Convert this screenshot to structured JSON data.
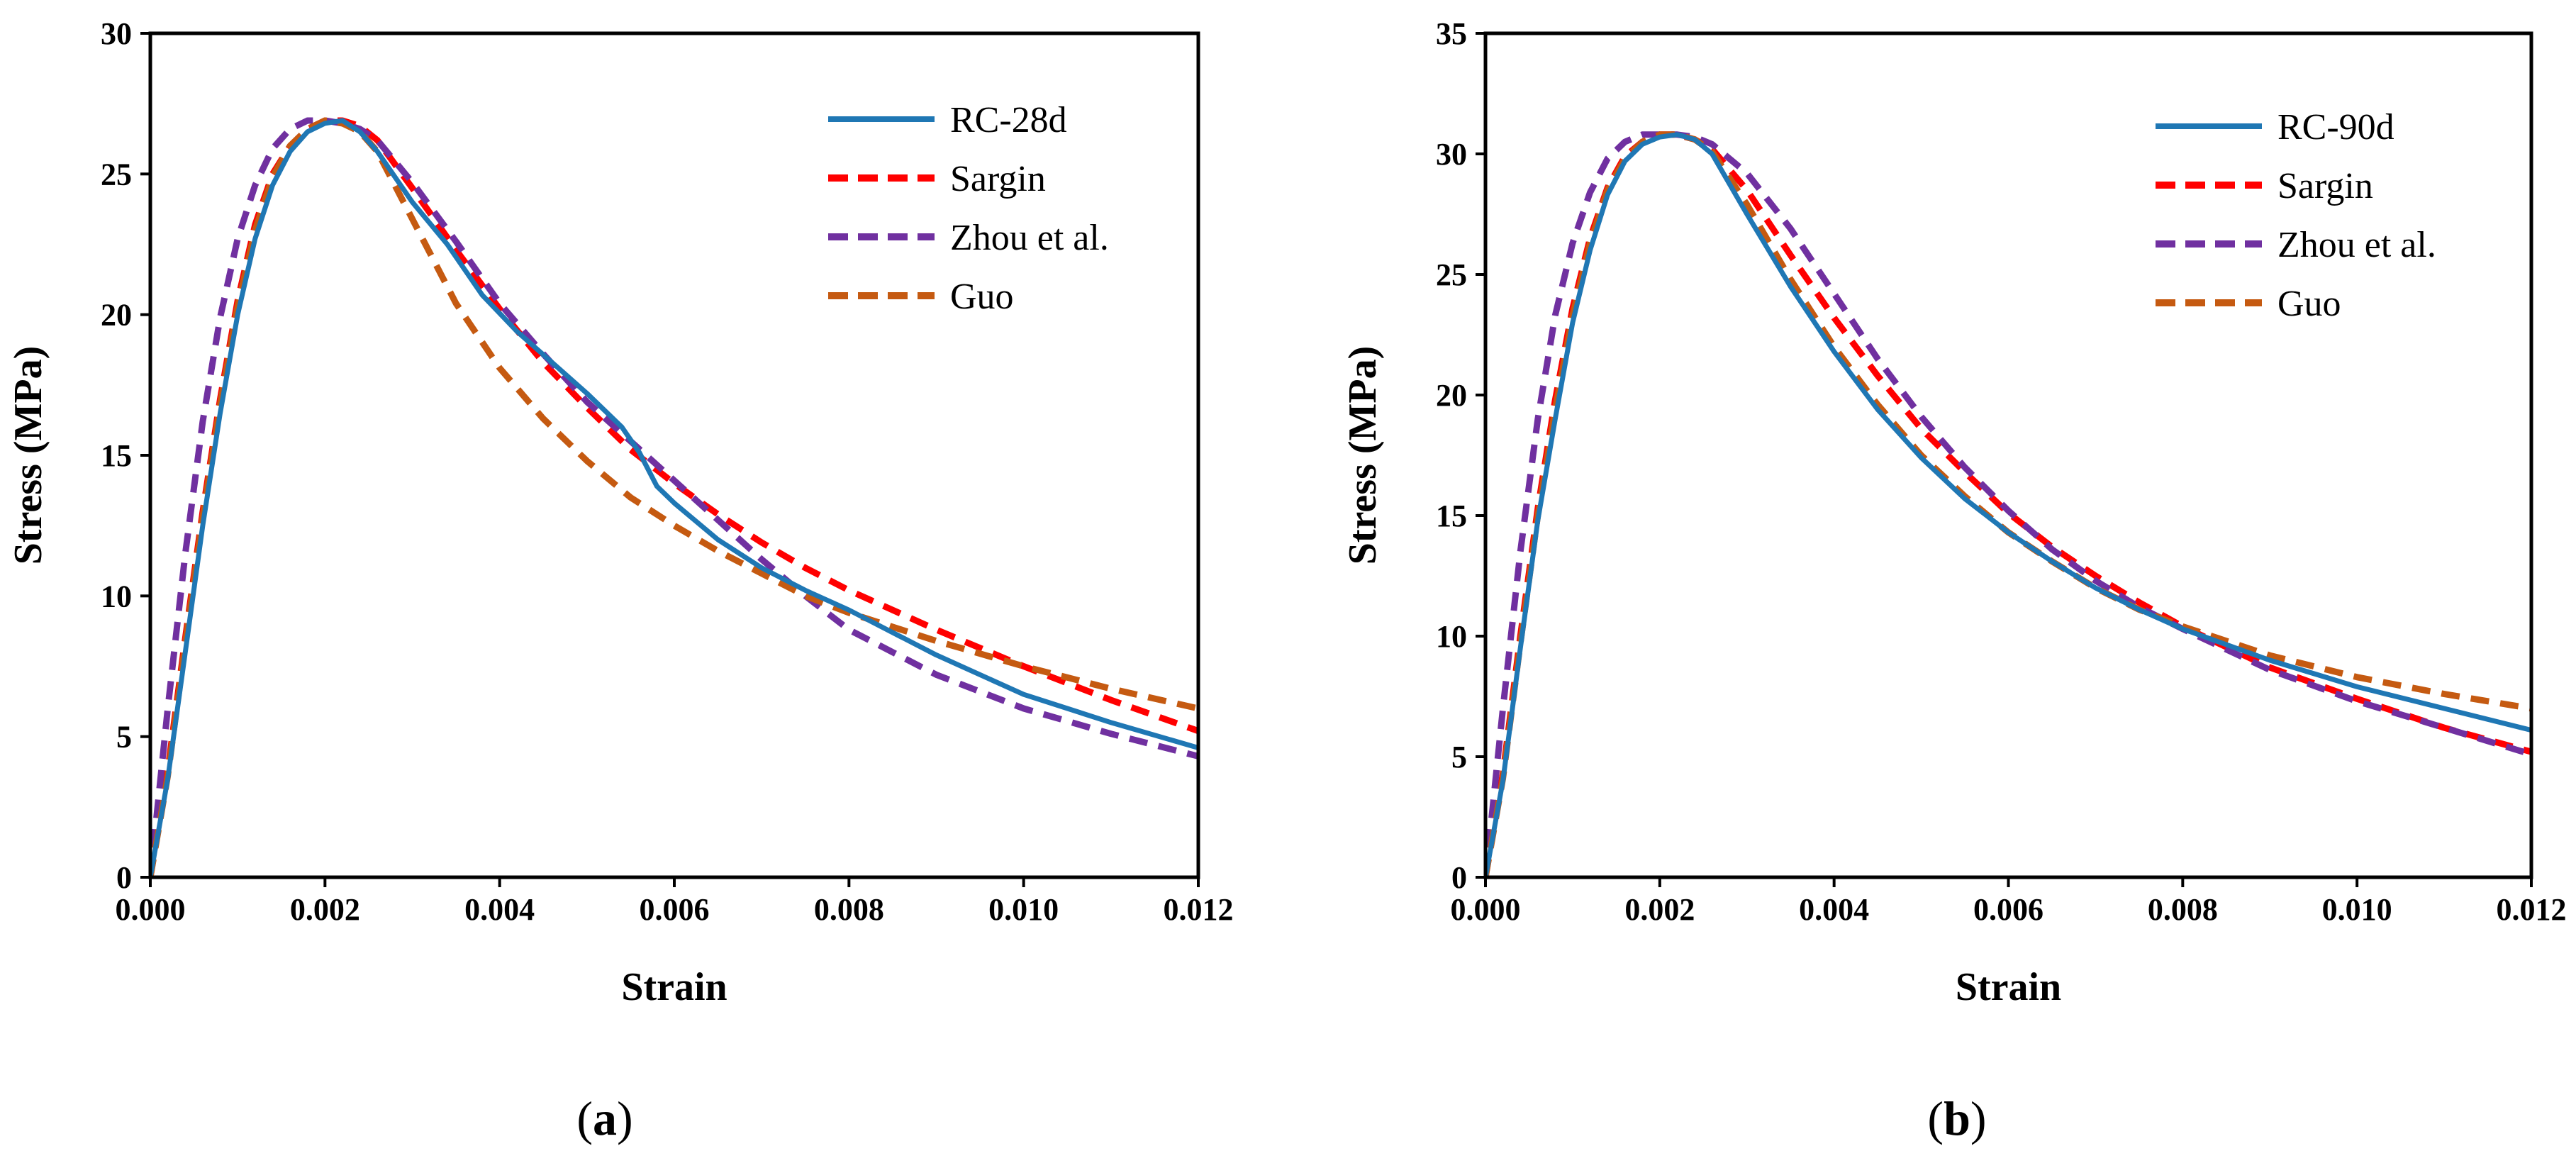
{
  "chart_data": [
    {
      "type": "line",
      "panel_label": "a",
      "title": "",
      "xlabel": "Strain",
      "ylabel": "Stress (MPa)",
      "xlim": [
        0,
        0.012
      ],
      "ylim": [
        0,
        30
      ],
      "xticks": [
        0,
        0.002,
        0.004,
        0.006,
        0.008,
        0.01,
        0.012
      ],
      "xtick_labels": [
        "0.000",
        "0.002",
        "0.004",
        "0.006",
        "0.008",
        "0.010",
        "0.012"
      ],
      "yticks": [
        0,
        5,
        10,
        15,
        20,
        25,
        30
      ],
      "ytick_labels": [
        "0",
        "5",
        "10",
        "15",
        "20",
        "25",
        "30"
      ],
      "grid": false,
      "legend_position": "top-right",
      "series": [
        {
          "name": "RC-28d",
          "style": "solid",
          "color": "#1f77b4",
          "x": [
            0,
            0.0002,
            0.0004,
            0.0006,
            0.0008,
            0.001,
            0.0012,
            0.0014,
            0.0016,
            0.0018,
            0.002,
            0.0022,
            0.0024,
            0.0026,
            0.003,
            0.0034,
            0.0038,
            0.0042,
            0.0046,
            0.005,
            0.0054,
            0.0056,
            0.0058,
            0.006,
            0.0065,
            0.007,
            0.0075,
            0.008,
            0.009,
            0.01,
            0.011,
            0.012
          ],
          "y": [
            0,
            3.5,
            8.0,
            12.5,
            16.5,
            20.0,
            22.7,
            24.6,
            25.8,
            26.5,
            26.8,
            26.9,
            26.5,
            25.8,
            24.0,
            22.5,
            20.7,
            19.4,
            18.3,
            17.2,
            16.0,
            15.1,
            13.9,
            13.3,
            12.0,
            11.0,
            10.2,
            9.5,
            7.9,
            6.5,
            5.5,
            4.6
          ]
        },
        {
          "name": "Sargin",
          "style": "dashed",
          "color": "#ff0000",
          "x": [
            0,
            0.0002,
            0.0004,
            0.0006,
            0.0008,
            0.001,
            0.0012,
            0.0014,
            0.0016,
            0.0018,
            0.002,
            0.0022,
            0.0024,
            0.0026,
            0.003,
            0.0035,
            0.004,
            0.0045,
            0.005,
            0.0055,
            0.006,
            0.0065,
            0.007,
            0.0075,
            0.008,
            0.009,
            0.01,
            0.011,
            0.012
          ],
          "y": [
            0,
            3.8,
            8.5,
            13.0,
            17.0,
            20.5,
            23.2,
            25.0,
            26.0,
            26.6,
            26.9,
            26.9,
            26.7,
            26.2,
            24.5,
            22.3,
            20.2,
            18.3,
            16.7,
            15.2,
            14.0,
            12.9,
            11.9,
            11.0,
            10.2,
            8.8,
            7.5,
            6.3,
            5.2
          ]
        },
        {
          "name": "Zhou et al.",
          "style": "dashed",
          "color": "#7030a0",
          "x": [
            0,
            0.0002,
            0.0004,
            0.0006,
            0.0008,
            0.001,
            0.0012,
            0.0014,
            0.0016,
            0.0018,
            0.002,
            0.0022,
            0.0024,
            0.0026,
            0.003,
            0.0035,
            0.004,
            0.0045,
            0.005,
            0.0055,
            0.006,
            0.0065,
            0.007,
            0.0075,
            0.008,
            0.009,
            0.01,
            0.011,
            0.012
          ],
          "y": [
            0,
            6.0,
            11.5,
            16.2,
            19.9,
            22.7,
            24.6,
            25.9,
            26.6,
            26.9,
            26.9,
            26.8,
            26.6,
            26.2,
            24.7,
            22.6,
            20.4,
            18.6,
            16.9,
            15.5,
            14.1,
            12.7,
            11.3,
            10.0,
            8.8,
            7.2,
            6.0,
            5.1,
            4.3
          ]
        },
        {
          "name": "Guo",
          "style": "dashed",
          "color": "#c55a11",
          "x": [
            0,
            0.0002,
            0.0004,
            0.0006,
            0.0008,
            0.001,
            0.0012,
            0.0014,
            0.0016,
            0.0018,
            0.002,
            0.0022,
            0.0024,
            0.0026,
            0.003,
            0.0035,
            0.004,
            0.0045,
            0.005,
            0.0055,
            0.006,
            0.0065,
            0.007,
            0.0075,
            0.008,
            0.009,
            0.01,
            0.011,
            0.012
          ],
          "y": [
            0,
            3.6,
            8.3,
            12.8,
            16.8,
            20.3,
            23.0,
            24.9,
            26.0,
            26.6,
            26.9,
            26.8,
            26.5,
            25.8,
            23.4,
            20.4,
            18.1,
            16.3,
            14.8,
            13.5,
            12.5,
            11.6,
            10.8,
            10.0,
            9.4,
            8.4,
            7.5,
            6.7,
            6.0
          ]
        }
      ]
    },
    {
      "type": "line",
      "panel_label": "b",
      "title": "",
      "xlabel": "Strain",
      "ylabel": "Stress (MPa)",
      "xlim": [
        0,
        0.012
      ],
      "ylim": [
        0,
        35
      ],
      "xticks": [
        0,
        0.002,
        0.004,
        0.006,
        0.008,
        0.01,
        0.012
      ],
      "xtick_labels": [
        "0.000",
        "0.002",
        "0.004",
        "0.006",
        "0.008",
        "0.010",
        "0.012"
      ],
      "yticks": [
        0,
        5,
        10,
        15,
        20,
        25,
        30,
        35
      ],
      "ytick_labels": [
        "0",
        "5",
        "10",
        "15",
        "20",
        "25",
        "30",
        "35"
      ],
      "grid": false,
      "legend_position": "top-right",
      "series": [
        {
          "name": "RC-90d",
          "style": "solid",
          "color": "#1f77b4",
          "x": [
            0,
            0.0002,
            0.0004,
            0.0006,
            0.0008,
            0.001,
            0.0012,
            0.0014,
            0.0016,
            0.0018,
            0.002,
            0.0022,
            0.0024,
            0.0026,
            0.003,
            0.0035,
            0.004,
            0.0045,
            0.005,
            0.0055,
            0.006,
            0.0065,
            0.007,
            0.0075,
            0.008,
            0.009,
            0.01,
            0.011,
            0.012
          ],
          "y": [
            0,
            4.0,
            9.5,
            14.8,
            19.0,
            23.0,
            26.0,
            28.3,
            29.7,
            30.4,
            30.7,
            30.8,
            30.6,
            30.0,
            27.5,
            24.5,
            21.8,
            19.4,
            17.4,
            15.7,
            14.3,
            13.1,
            12.0,
            11.1,
            10.3,
            9.0,
            7.9,
            7.0,
            6.1
          ]
        },
        {
          "name": "Sargin",
          "style": "dashed",
          "color": "#ff0000",
          "x": [
            0,
            0.0002,
            0.0004,
            0.0006,
            0.0008,
            0.001,
            0.0012,
            0.0014,
            0.0016,
            0.0018,
            0.002,
            0.0022,
            0.0024,
            0.0026,
            0.003,
            0.0035,
            0.004,
            0.0045,
            0.005,
            0.0055,
            0.006,
            0.0065,
            0.007,
            0.0075,
            0.008,
            0.009,
            0.01,
            0.011,
            0.012
          ],
          "y": [
            0,
            4.3,
            10.0,
            15.3,
            19.8,
            23.6,
            26.5,
            28.6,
            29.9,
            30.5,
            30.8,
            30.8,
            30.6,
            30.2,
            28.5,
            25.8,
            23.2,
            20.8,
            18.6,
            16.8,
            15.1,
            13.7,
            12.5,
            11.4,
            10.4,
            8.7,
            7.4,
            6.2,
            5.2
          ]
        },
        {
          "name": "Zhou et al.",
          "style": "dashed",
          "color": "#7030a0",
          "x": [
            0,
            0.0002,
            0.0004,
            0.0006,
            0.0008,
            0.001,
            0.0012,
            0.0014,
            0.0016,
            0.0018,
            0.002,
            0.0022,
            0.0024,
            0.0026,
            0.003,
            0.0035,
            0.004,
            0.0045,
            0.005,
            0.0055,
            0.006,
            0.0065,
            0.007,
            0.0075,
            0.008,
            0.009,
            0.01,
            0.011,
            0.012
          ],
          "y": [
            0,
            7.0,
            13.5,
            19.0,
            23.3,
            26.3,
            28.4,
            29.8,
            30.5,
            30.8,
            30.8,
            30.8,
            30.7,
            30.4,
            29.2,
            26.9,
            24.2,
            21.5,
            19.1,
            17.0,
            15.2,
            13.6,
            12.3,
            11.2,
            10.3,
            8.6,
            7.3,
            6.2,
            5.1
          ]
        },
        {
          "name": "Guo",
          "style": "dashed",
          "color": "#c55a11",
          "x": [
            0,
            0.0002,
            0.0004,
            0.0006,
            0.0008,
            0.001,
            0.0012,
            0.0014,
            0.0016,
            0.0018,
            0.002,
            0.0022,
            0.0024,
            0.0026,
            0.003,
            0.0035,
            0.004,
            0.0045,
            0.005,
            0.0055,
            0.006,
            0.0065,
            0.007,
            0.0075,
            0.008,
            0.009,
            0.01,
            0.011,
            0.012
          ],
          "y": [
            0,
            4.1,
            9.7,
            15.0,
            19.4,
            23.3,
            26.3,
            28.5,
            29.8,
            30.5,
            30.8,
            30.8,
            30.6,
            30.1,
            27.9,
            24.8,
            22.0,
            19.6,
            17.5,
            15.8,
            14.3,
            13.1,
            12.0,
            11.1,
            10.4,
            9.2,
            8.3,
            7.6,
            7.0
          ]
        }
      ]
    }
  ]
}
